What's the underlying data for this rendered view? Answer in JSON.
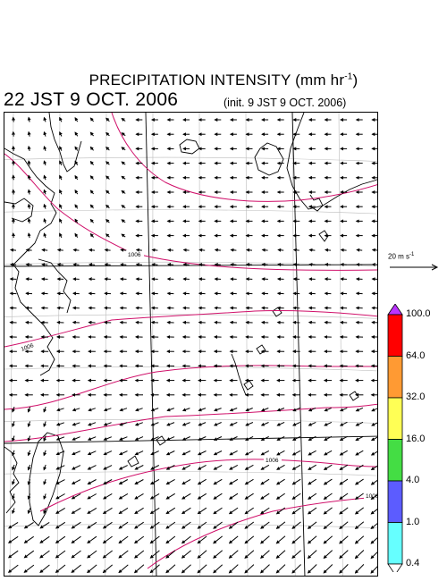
{
  "title": {
    "main": "PRECIPITATION INTENSITY (mm hr",
    "sup": "-1",
    "close": ")"
  },
  "valid_time": "22 JST 9 OCT. 2006",
  "init_time": "(init. 9 JST 9 OCT. 2006)",
  "reference_vector": {
    "value": "20 m s",
    "sup": "-1"
  },
  "isobar_labels": [
    "1006",
    "1006",
    "1006",
    "1008"
  ],
  "colorbar": {
    "levels": [
      "100.0",
      "64.0",
      "32.0",
      "16.0",
      "4.0",
      "1.0",
      "0.4"
    ],
    "colors": [
      "#ff0000",
      "#ff9a33",
      "#ffff55",
      "#44dd44",
      "#5c5cff",
      "#66ffff"
    ],
    "top_arrow_color": "#bb33ff",
    "bottom_arrow_color": "#ffffff"
  },
  "colors": {
    "isobar": "#d0106a",
    "grid": "#bbbbbb",
    "coast": "#000000",
    "frame": "#000000"
  }
}
